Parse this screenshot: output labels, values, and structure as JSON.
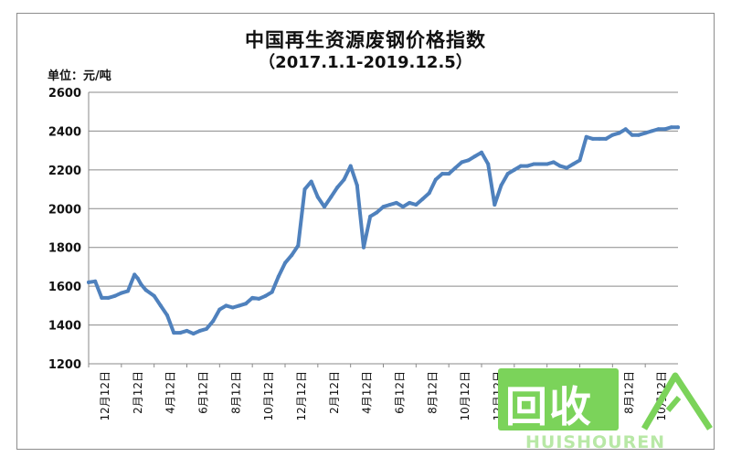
{
  "chart_data": {
    "type": "line",
    "title": "中国再生资源废钢价格指数",
    "subtitle": "（2017.1.1-2019.12.5）",
    "unit_label": "单位：元/吨",
    "xlabel": "",
    "ylabel": "",
    "ylim": [
      1200,
      2600
    ],
    "yticks": [
      1200,
      1400,
      1600,
      1800,
      2000,
      2200,
      2400,
      2600
    ],
    "x_tick_labels": [
      "12月12日",
      "2月12日",
      "4月12日",
      "6月12日",
      "8月12日",
      "10月12日",
      "12月12日",
      "2月12日",
      "4月12日",
      "6月12日",
      "8月12日",
      "10月12日",
      "12月12日",
      "2月12日",
      "4月12日",
      "6月12日",
      "8月12日",
      "10月12日"
    ],
    "xlim": [
      0,
      36
    ],
    "grid": true,
    "legend": "none",
    "line_color": "#4f81bd",
    "series": [
      {
        "x": [
          0,
          0.4,
          0.8,
          1.2,
          1.6,
          2.0,
          2.4,
          2.8,
          3.0,
          3.2,
          3.5,
          4.0,
          4.4,
          4.8,
          5.2,
          5.6,
          6.0,
          6.4,
          6.8,
          7.2,
          7.6,
          8.0,
          8.4,
          8.8,
          9.2,
          9.6,
          10.0,
          10.4,
          10.8,
          11.2,
          11.6,
          12.0,
          12.4,
          12.8,
          13.2,
          13.6,
          14.0,
          14.4,
          14.8,
          15.2,
          15.6,
          16.0,
          16.4,
          16.8,
          17.2,
          17.6,
          18.0,
          18.4,
          18.8,
          19.2,
          19.6,
          20.0,
          20.4,
          20.8,
          21.2,
          21.6,
          22.0,
          22.4,
          22.8,
          23.2,
          23.6,
          24.0,
          24.4,
          24.8,
          25.2,
          25.6,
          26.0,
          26.4,
          26.8,
          27.2,
          27.6,
          28.0,
          28.4,
          28.8,
          29.2,
          29.6,
          30.0,
          30.4,
          30.8,
          31.2,
          31.6,
          32.0,
          32.4,
          32.8,
          33.2,
          33.6,
          34.0,
          34.4,
          34.8,
          35.2,
          35.6,
          36.0
        ],
        "y": [
          1620,
          1625,
          1540,
          1540,
          1550,
          1565,
          1575,
          1660,
          1640,
          1610,
          1580,
          1550,
          1500,
          1450,
          1360,
          1360,
          1370,
          1355,
          1370,
          1380,
          1420,
          1480,
          1500,
          1490,
          1500,
          1510,
          1540,
          1535,
          1550,
          1570,
          1650,
          1720,
          1760,
          1810,
          2100,
          2140,
          2060,
          2010,
          2060,
          2110,
          2150,
          2220,
          2120,
          1800,
          1960,
          1980,
          2010,
          2020,
          2030,
          2010,
          2030,
          2020,
          2050,
          2080,
          2150,
          2180,
          2180,
          2210,
          2240,
          2250,
          2270,
          2290,
          2230,
          2020,
          2120,
          2180,
          2200,
          2220,
          2220,
          2230,
          2230,
          2230,
          2240,
          2220,
          2210,
          2230,
          2250,
          2370,
          2360,
          2360,
          2360,
          2380,
          2390,
          2410,
          2380,
          2380,
          2390,
          2400,
          2410,
          2410,
          2420,
          2420
        ]
      }
    ]
  },
  "watermark": {
    "main": "回收",
    "sub": "HUISHOUREN"
  }
}
